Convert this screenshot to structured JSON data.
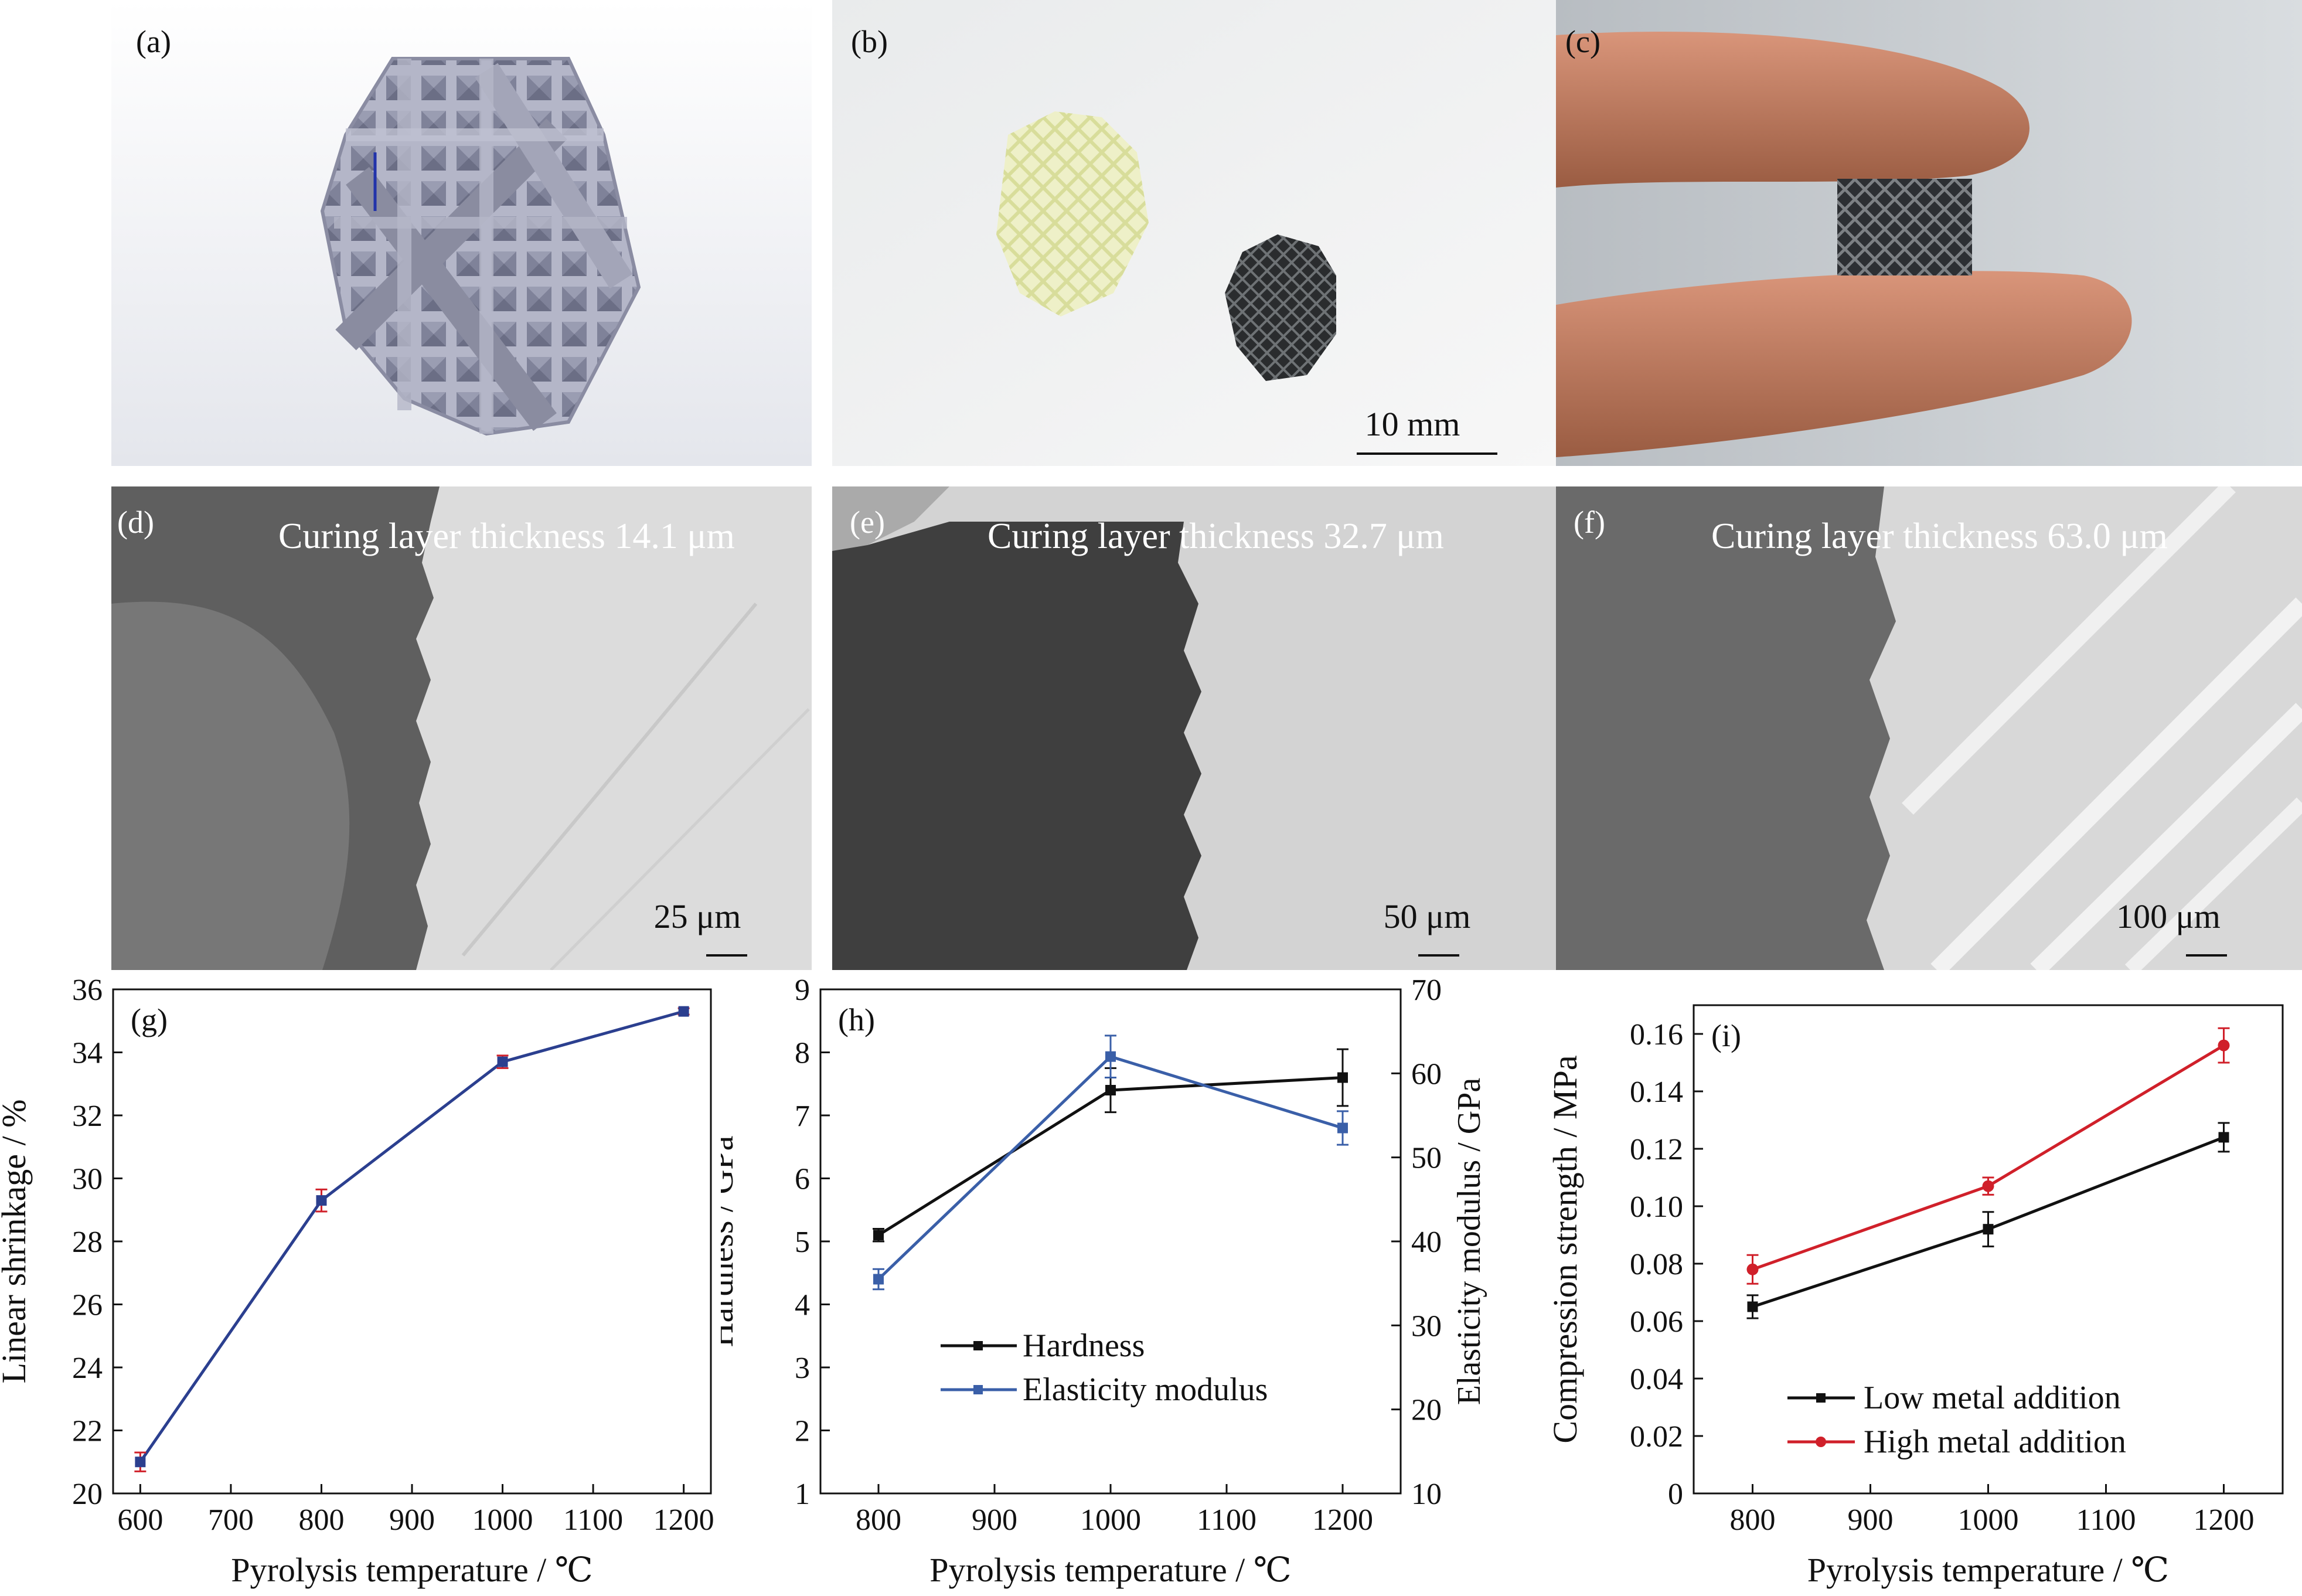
{
  "colors": {
    "blue": "#2b3f8f",
    "red": "#d0202a",
    "black": "#111111",
    "blue_h": "#3a5fa8"
  },
  "panels": {
    "a": {
      "label": "(a)"
    },
    "b": {
      "label": "(b)",
      "scale": "10 mm"
    },
    "c": {
      "label": "(c)"
    },
    "d": {
      "label": "(d)",
      "title": "Curing layer thickness 14.1 μm",
      "scale": "25 μm"
    },
    "e": {
      "label": "(e)",
      "title": "Curing layer thickness 32.7 μm",
      "scale": "50 μm"
    },
    "f": {
      "label": "(f)",
      "title": "Curing layer thickness 63.0 μm",
      "scale": "100 μm"
    }
  },
  "chart_data": [
    {
      "id": "g",
      "panel_label": "(g)",
      "type": "line",
      "xlabel": "Pyrolysis temperature / ℃",
      "ylabel": "Linear shrinkage / %",
      "xlim": [
        570,
        1230
      ],
      "ylim": [
        20,
        36
      ],
      "xticks": [
        600,
        700,
        800,
        900,
        1000,
        1100,
        1200
      ],
      "yticks": [
        20,
        22,
        24,
        26,
        28,
        30,
        32,
        34,
        36
      ],
      "series": [
        {
          "x": [
            600,
            800,
            1000,
            1200
          ],
          "values": [
            21.0,
            29.3,
            33.7,
            35.3
          ],
          "err": [
            0.3,
            0.35,
            0.2,
            0.1
          ],
          "color": "#2b3f8f",
          "err_color": "#d0202a",
          "marker": "square"
        }
      ]
    },
    {
      "id": "h",
      "panel_label": "(h)",
      "type": "line",
      "xlabel": "Pyrolysis temperature / ℃",
      "ylabel": "Hardness / GPa",
      "ylabel_right": "Elasticity modulus / GPa",
      "xlim": [
        750,
        1250
      ],
      "ylim": [
        1,
        9
      ],
      "ylim_right": [
        10,
        70
      ],
      "xticks": [
        800,
        900,
        1000,
        1100,
        1200
      ],
      "yticks": [
        1,
        2,
        3,
        4,
        5,
        6,
        7,
        8,
        9
      ],
      "yticks_right": [
        10,
        20,
        30,
        40,
        50,
        60,
        70
      ],
      "legend": "center",
      "series": [
        {
          "name": "Hardness",
          "axis": "left",
          "x": [
            800,
            1000,
            1200
          ],
          "values": [
            5.1,
            7.4,
            7.6
          ],
          "err": [
            0.1,
            0.35,
            0.45
          ],
          "color": "#111111"
        },
        {
          "name": "Elasticity modulus",
          "axis": "right",
          "x": [
            800,
            1000,
            1200
          ],
          "values": [
            35.5,
            62.0,
            53.5
          ],
          "err": [
            1.2,
            2.5,
            2.0
          ],
          "color": "#3a5fa8"
        }
      ]
    },
    {
      "id": "i",
      "panel_label": "(i)",
      "type": "line",
      "xlabel": "Pyrolysis temperature / ℃",
      "ylabel": "Compression strength / MPa",
      "xlim": [
        750,
        1250
      ],
      "ylim": [
        0,
        0.17
      ],
      "xticks": [
        800,
        900,
        1000,
        1100,
        1200
      ],
      "yticks": [
        0,
        0.02,
        0.04,
        0.06,
        0.08,
        0.1,
        0.12,
        0.14,
        0.16
      ],
      "ytick_labels": [
        "0",
        "0.02",
        "0.04",
        "0.06",
        "0.08",
        "0.10",
        "0.12",
        "0.14",
        "0.16"
      ],
      "legend": "lower-center",
      "series": [
        {
          "name": "Low metal addition",
          "x": [
            800,
            1000,
            1200
          ],
          "values": [
            0.065,
            0.092,
            0.124
          ],
          "err": [
            0.004,
            0.006,
            0.005
          ],
          "color": "#111111",
          "marker": "square"
        },
        {
          "name": "High metal addition",
          "x": [
            800,
            1000,
            1200
          ],
          "values": [
            0.078,
            0.107,
            0.156
          ],
          "err": [
            0.005,
            0.003,
            0.006
          ],
          "color": "#d0202a",
          "marker": "circle"
        }
      ]
    }
  ]
}
